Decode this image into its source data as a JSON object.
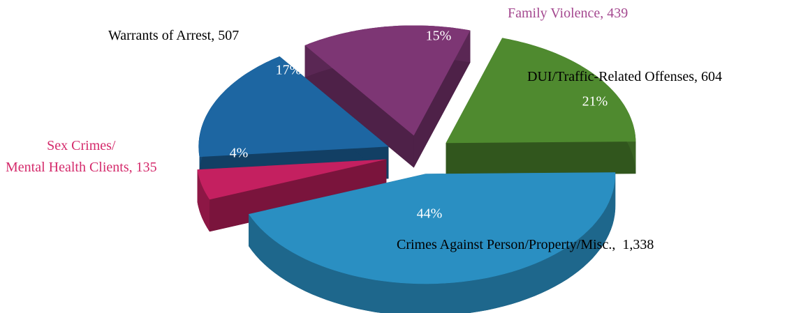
{
  "chart_data": {
    "type": "pie3d",
    "categories": [
      "Family Violence, 439",
      "DUI/Traffic-Related Offenses, 604",
      "Crimes Against Person/Property/Misc.,  1,338",
      "Sex Crimes/\nMental Health Clients, 135",
      "Warrants of Arrest, 507"
    ],
    "values": [
      439,
      604,
      1338,
      135,
      507
    ],
    "percent_labels": [
      "15%",
      "21%",
      "44%",
      "4%",
      "17%"
    ],
    "colors": [
      "#7d3674",
      "#4f8a2f",
      "#2a8fc2",
      "#c42060",
      "#1d66a2"
    ],
    "label_colors": [
      "#a4488f",
      "#000000",
      "#000000",
      "#d42a6b",
      "#000000"
    ],
    "exploded": true
  }
}
